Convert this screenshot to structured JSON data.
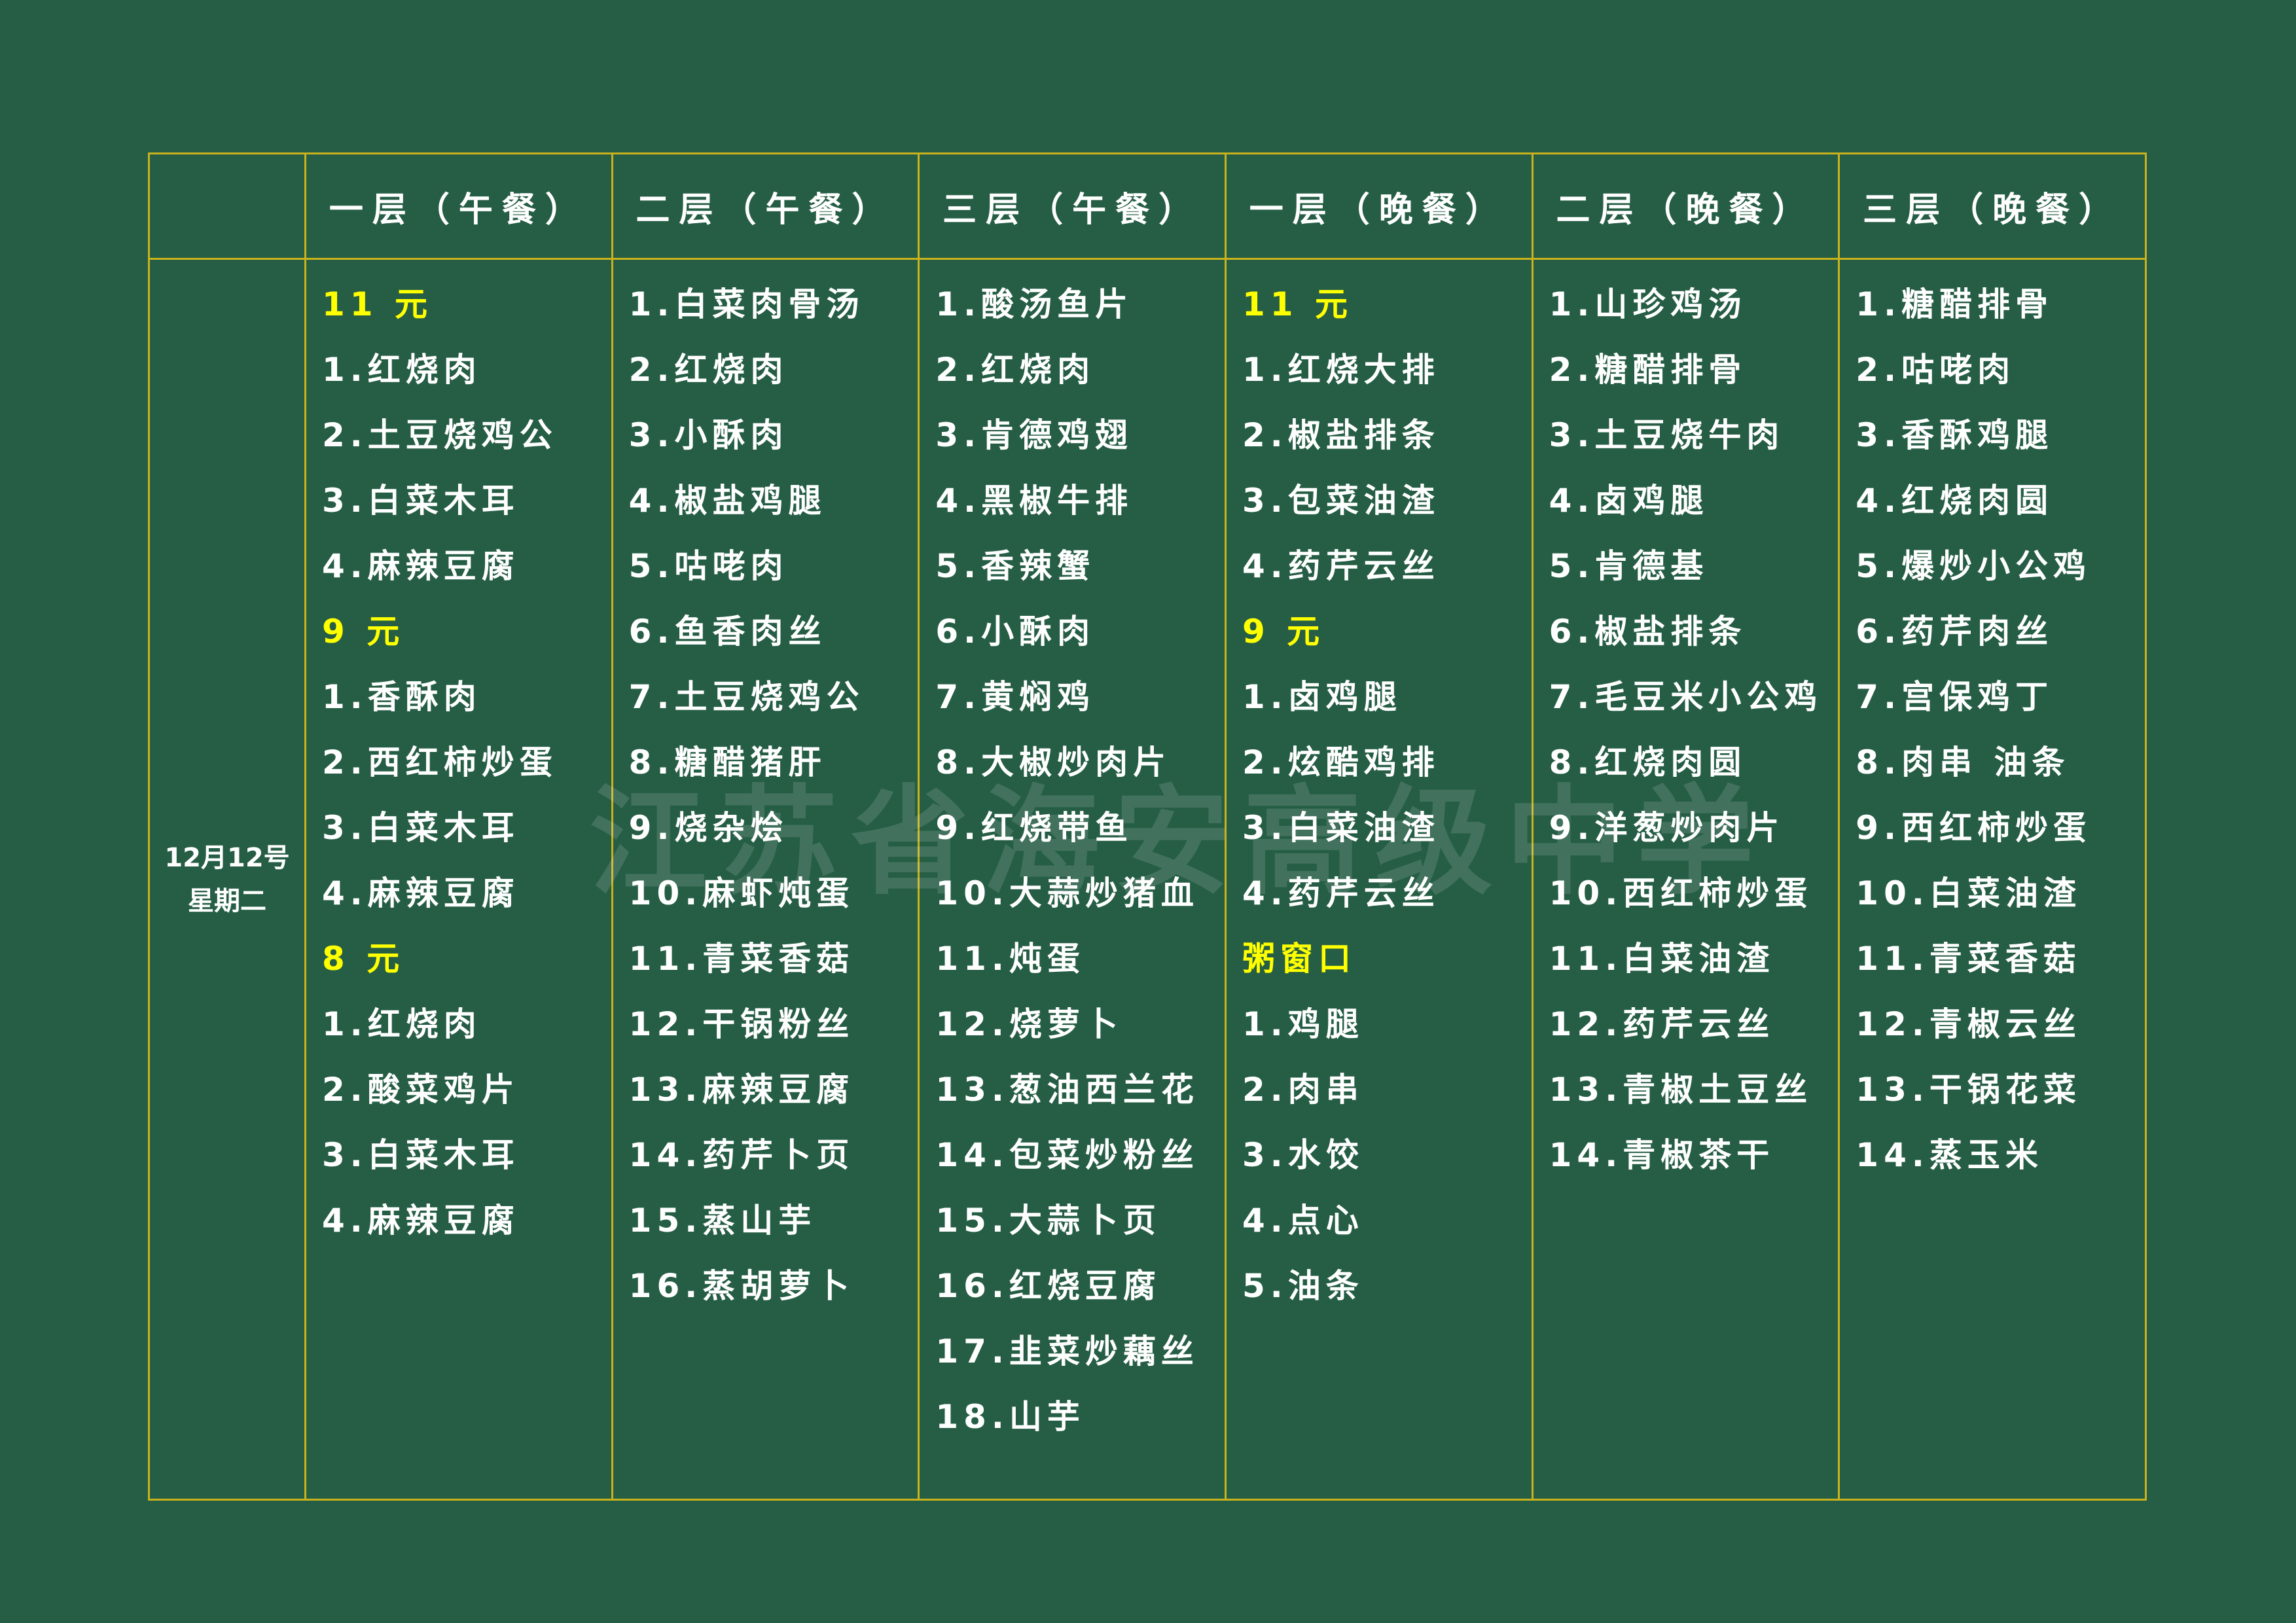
{
  "watermark": "江苏省海安高级中学",
  "date": "12月12号",
  "weekday": "星期二",
  "columns": [
    {
      "header": "一层（午餐）",
      "items": [
        {
          "t": "11 元",
          "p": true
        },
        {
          "t": "1.红烧肉"
        },
        {
          "t": "2.土豆烧鸡公"
        },
        {
          "t": "3.白菜木耳"
        },
        {
          "t": "4.麻辣豆腐"
        },
        {
          "t": "9 元",
          "p": true
        },
        {
          "t": "1.香酥肉"
        },
        {
          "t": "2.西红柿炒蛋"
        },
        {
          "t": "3.白菜木耳"
        },
        {
          "t": "4.麻辣豆腐"
        },
        {
          "t": "8 元",
          "p": true
        },
        {
          "t": "1.红烧肉"
        },
        {
          "t": "2.酸菜鸡片"
        },
        {
          "t": "3.白菜木耳"
        },
        {
          "t": "4.麻辣豆腐"
        }
      ]
    },
    {
      "header": "二层（午餐）",
      "items": [
        {
          "t": "1.白菜肉骨汤"
        },
        {
          "t": "2.红烧肉"
        },
        {
          "t": "3.小酥肉"
        },
        {
          "t": "4.椒盐鸡腿"
        },
        {
          "t": "5.咕咾肉"
        },
        {
          "t": "6.鱼香肉丝"
        },
        {
          "t": "7.土豆烧鸡公"
        },
        {
          "t": "8.糖醋猪肝"
        },
        {
          "t": "9.烧杂烩"
        },
        {
          "t": "10.麻虾炖蛋"
        },
        {
          "t": "11.青菜香菇"
        },
        {
          "t": "12.干锅粉丝"
        },
        {
          "t": "13.麻辣豆腐"
        },
        {
          "t": "14.药芹卜页"
        },
        {
          "t": "15.蒸山芋"
        },
        {
          "t": "16.蒸胡萝卜"
        }
      ]
    },
    {
      "header": "三层（午餐）",
      "items": [
        {
          "t": "1.酸汤鱼片"
        },
        {
          "t": "2.红烧肉"
        },
        {
          "t": "3.肯德鸡翅"
        },
        {
          "t": "4.黑椒牛排"
        },
        {
          "t": "5.香辣蟹"
        },
        {
          "t": "6.小酥肉"
        },
        {
          "t": "7.黄焖鸡"
        },
        {
          "t": "8.大椒炒肉片"
        },
        {
          "t": "9.红烧带鱼"
        },
        {
          "t": "10.大蒜炒猪血"
        },
        {
          "t": "11.炖蛋"
        },
        {
          "t": "12.烧萝卜"
        },
        {
          "t": "13.葱油西兰花"
        },
        {
          "t": "14.包菜炒粉丝"
        },
        {
          "t": "15.大蒜卜页"
        },
        {
          "t": "16.红烧豆腐"
        },
        {
          "t": "17.韭菜炒藕丝"
        },
        {
          "t": "18.山芋"
        }
      ]
    },
    {
      "header": "一层（晚餐）",
      "items": [
        {
          "t": "11 元",
          "p": true
        },
        {
          "t": "1.红烧大排"
        },
        {
          "t": "2.椒盐排条"
        },
        {
          "t": "3.包菜油渣"
        },
        {
          "t": "4.药芹云丝"
        },
        {
          "t": "9 元",
          "p": true
        },
        {
          "t": "1.卤鸡腿"
        },
        {
          "t": "2.炫酷鸡排"
        },
        {
          "t": "3.白菜油渣"
        },
        {
          "t": "4.药芹云丝"
        },
        {
          "t": "粥窗口",
          "p": true
        },
        {
          "t": "1.鸡腿"
        },
        {
          "t": "2.肉串"
        },
        {
          "t": "3.水饺"
        },
        {
          "t": "4.点心"
        },
        {
          "t": "5.油条"
        }
      ]
    },
    {
      "header": "二层（晚餐）",
      "items": [
        {
          "t": "1.山珍鸡汤"
        },
        {
          "t": "2.糖醋排骨"
        },
        {
          "t": "3.土豆烧牛肉"
        },
        {
          "t": "4.卤鸡腿"
        },
        {
          "t": "5.肯德基"
        },
        {
          "t": "6.椒盐排条"
        },
        {
          "t": "7.毛豆米小公鸡"
        },
        {
          "t": "8.红烧肉圆"
        },
        {
          "t": "9.洋葱炒肉片"
        },
        {
          "t": "10.西红柿炒蛋"
        },
        {
          "t": "11.白菜油渣"
        },
        {
          "t": "12.药芹云丝"
        },
        {
          "t": "13.青椒土豆丝"
        },
        {
          "t": "14.青椒茶干"
        }
      ]
    },
    {
      "header": "三层（晚餐）",
      "items": [
        {
          "t": "1.糖醋排骨"
        },
        {
          "t": "2.咕咾肉"
        },
        {
          "t": "3.香酥鸡腿"
        },
        {
          "t": "4.红烧肉圆"
        },
        {
          "t": "5.爆炒小公鸡"
        },
        {
          "t": "6.药芹肉丝"
        },
        {
          "t": "7.宫保鸡丁"
        },
        {
          "t": "8.肉串  油条"
        },
        {
          "t": "9.西红柿炒蛋"
        },
        {
          "t": "10.白菜油渣"
        },
        {
          "t": "11.青菜香菇"
        },
        {
          "t": "12.青椒云丝"
        },
        {
          "t": "13.干锅花菜"
        },
        {
          "t": "14.蒸玉米"
        }
      ]
    }
  ],
  "colors": {
    "background": "#265e45",
    "border": "#c9b21c",
    "price": "#ffff00",
    "text": "#ffffff"
  }
}
